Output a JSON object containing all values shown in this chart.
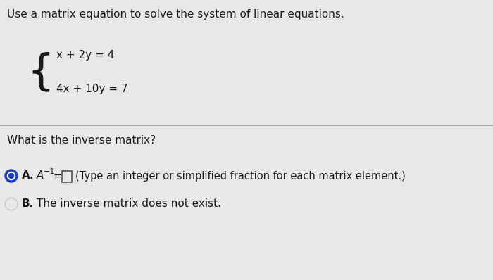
{
  "background_color": "#e8e8e8",
  "title_text": "Use a matrix equation to solve the system of linear equations.",
  "eq1": "x + 2y = 4",
  "eq2": "4x + 10y = 7",
  "question": "What is the inverse matrix?",
  "option_a_label": "A.",
  "option_a_main": "A",
  "option_a_sup": "−1",
  "option_a_eq": "=",
  "option_a_hint": "(Type an integer or simplified fraction for each matrix element.)",
  "option_b_label": "B.",
  "option_b_text": "The inverse matrix does not exist.",
  "title_fontsize": 11,
  "body_fontsize": 11,
  "text_color": "#1a1a1a",
  "radio_selected_color": "#1a3acc",
  "radio_dot_color": "#ffffff",
  "box_edge_color": "#555555"
}
